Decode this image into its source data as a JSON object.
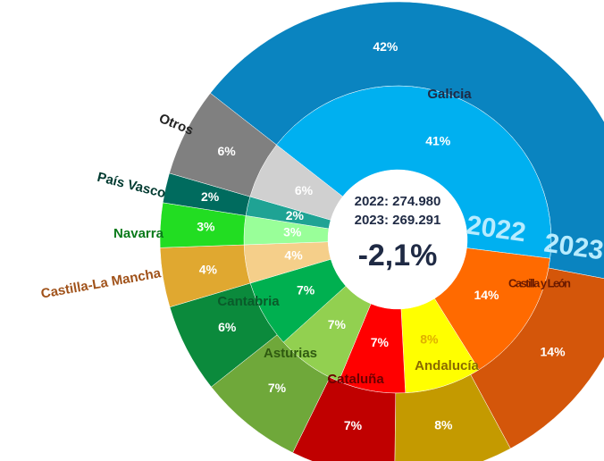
{
  "chart_data": {
    "type": "donut",
    "categories": [
      "Galicia",
      "Castilla y León",
      "Andalucía",
      "Cataluña",
      "Asturias",
      "Cantabria",
      "Castilla-La Mancha",
      "Navarra",
      "País Vasco",
      "Otros"
    ],
    "series": [
      {
        "name": "2022",
        "values": [
          41,
          14,
          8,
          7,
          7,
          7,
          4,
          3,
          2,
          6
        ],
        "value_labels": [
          "41%",
          "14%",
          "8%",
          "7%",
          "7%",
          "7%",
          "4%",
          "3%",
          "2%",
          "6%"
        ],
        "colors": [
          "#00b0f0",
          "#ff6a00",
          "#ffff00",
          "#ff0000",
          "#92d050",
          "#00b050",
          "#f5cf8a",
          "#99ff99",
          "#1fa394",
          "#d0d0d0"
        ]
      },
      {
        "name": "2023",
        "values": [
          42,
          14,
          8,
          7,
          7,
          6,
          4,
          3,
          2,
          6
        ],
        "value_labels": [
          "42%",
          "14%",
          "8%",
          "7%",
          "7%",
          "6%",
          "4%",
          "3%",
          "2%",
          "6%"
        ],
        "colors": [
          "#0a84c0",
          "#d4560a",
          "#c49a00",
          "#c00000",
          "#6fa83a",
          "#0b8a3c",
          "#e0a830",
          "#22dd22",
          "#006b5e",
          "#808080"
        ]
      }
    ],
    "center_lines": [
      "2022: 274.980",
      "2023: 269.291"
    ],
    "center_change": "-2,1%"
  }
}
